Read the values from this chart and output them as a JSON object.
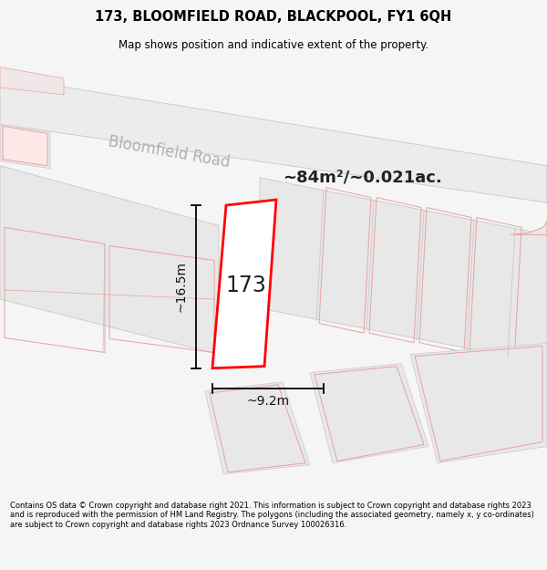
{
  "title_line1": "173, BLOOMFIELD ROAD, BLACKPOOL, FY1 6QH",
  "title_line2": "Map shows position and indicative extent of the property.",
  "area_text": "~84m²/~0.021ac.",
  "label_173": "173",
  "dim_height": "~16.5m",
  "dim_width": "~9.2m",
  "road_label": "Bloomfield Road",
  "footer_text": "Contains OS data © Crown copyright and database right 2021. This information is subject to Crown copyright and database rights 2023 and is reproduced with the permission of HM Land Registry. The polygons (including the associated geometry, namely x, y co-ordinates) are subject to Crown copyright and database rights 2023 Ordnance Survey 100026316.",
  "bg_color": "#f5f5f5",
  "map_bg": "#ffffff",
  "gray_fill": "#e8e8e8",
  "gray_stroke": "#c8c8c8",
  "pink_stroke": "#e8a0a0",
  "plot_fill": "#ffffff",
  "plot_stroke": "#ff0000",
  "road_label_color": "#b0b0b0",
  "dim_color": "#111111",
  "text_color": "#222222"
}
